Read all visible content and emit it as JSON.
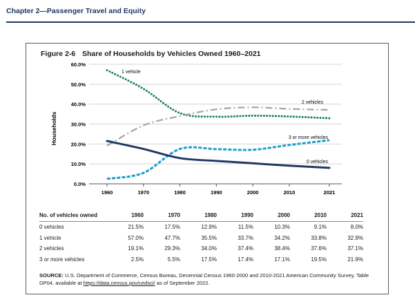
{
  "header": {
    "chapter": "Chapter 2—Passenger Travel and Equity"
  },
  "figure": {
    "number": "Figure 2-6",
    "title": "Share of Households by Vehicles Owned 1960–2021"
  },
  "chart_data": {
    "type": "line",
    "title": "Share of Households by Vehicles Owned 1960–2021",
    "ylabel": "Households",
    "xlabel": "",
    "ylim": [
      0,
      60
    ],
    "y_ticks": [
      "0.0%",
      "10.0%",
      "20.0%",
      "30.0%",
      "40.0%",
      "50.0%",
      "60.0%"
    ],
    "x": [
      1960,
      1970,
      1980,
      1990,
      2000,
      2010,
      2021
    ],
    "x_ticks": [
      "1960",
      "1970",
      "1980",
      "1990",
      "2000",
      "2010",
      "2021"
    ],
    "grid": true,
    "series": [
      {
        "name": "1 vehicle",
        "values": [
          57.0,
          47.7,
          35.5,
          33.7,
          34.2,
          33.8,
          32.9
        ],
        "color": "#1b7f6b",
        "style": "dotted"
      },
      {
        "name": "2 vehicles",
        "values": [
          19.1,
          29.3,
          34.0,
          37.4,
          38.4,
          37.6,
          37.1
        ],
        "color": "#a8a39d",
        "style": "dashdot"
      },
      {
        "name": "3 or more vehicles",
        "values": [
          2.5,
          5.5,
          17.5,
          17.4,
          17.1,
          19.5,
          21.9
        ],
        "color": "#1a9fc9",
        "style": "dashed"
      },
      {
        "name": "0 vehicles",
        "values": [
          21.5,
          17.5,
          12.9,
          11.5,
          10.3,
          9.1,
          8.0
        ],
        "color": "#1f3864",
        "style": "solid"
      }
    ]
  },
  "table": {
    "header": [
      "No. of vehicles owned",
      "1960",
      "1970",
      "1980",
      "1990",
      "2000",
      "2010",
      "2021"
    ],
    "rows": [
      [
        "0 vehicles",
        "21.5%",
        "17.5%",
        "12.9%",
        "11.5%",
        "10.3%",
        "9.1%",
        "8.0%"
      ],
      [
        "1 vehicle",
        "57.0%",
        "47.7%",
        "35.5%",
        "33.7%",
        "34.2%",
        "33.8%",
        "32.9%"
      ],
      [
        "2 vehicles",
        "19.1%",
        "29.3%",
        "34.0%",
        "37.4%",
        "38.4%",
        "37.6%",
        "37.1%"
      ],
      [
        "3 or more vehicles",
        "2.5%",
        "5.5%",
        "17.5%",
        "17.4%",
        "17.1%",
        "19.5%",
        "21.9%"
      ]
    ]
  },
  "source": {
    "label": "SOURCE:",
    "text": "U.S. Department of Commerce, Census Bureau, Decennial Census 1960-2000 and 2010-2021 American Community Survey, Table DP04, available at",
    "url": "https://data.census.gov/cedsci/",
    "suffix": "as of September 2022."
  }
}
